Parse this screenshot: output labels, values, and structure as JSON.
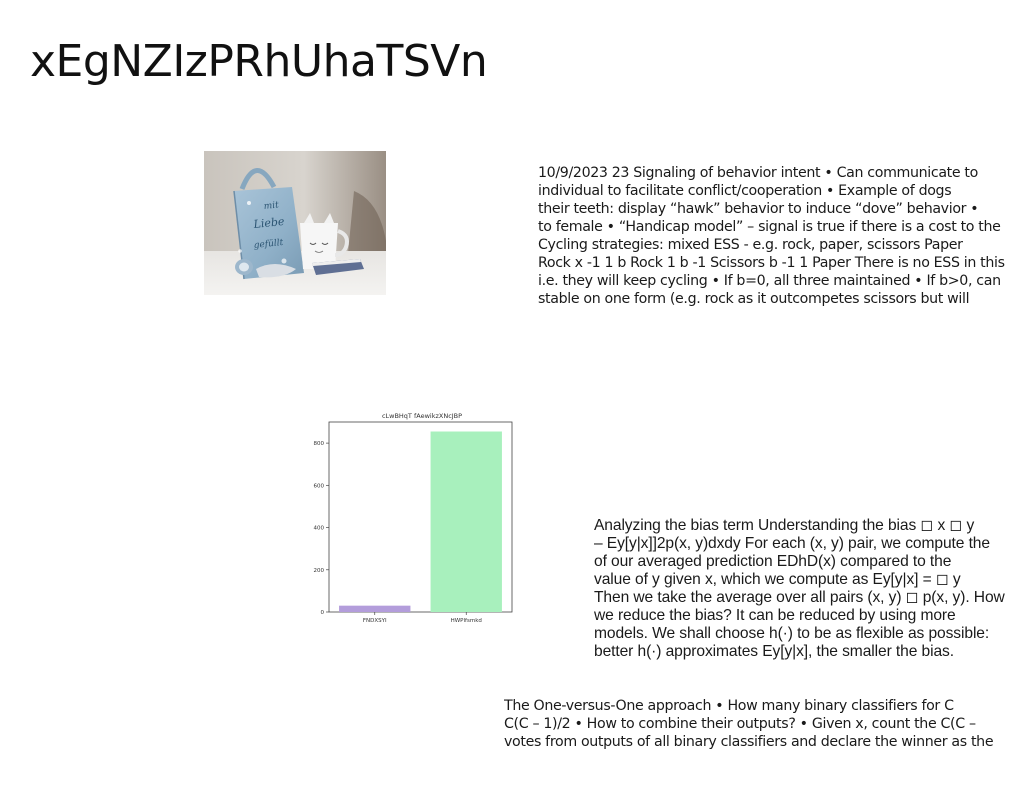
{
  "page": {
    "title": "xEgNZIzPRhUhaTSVn"
  },
  "photo": {
    "bag_text": [
      "mit",
      "Liebe",
      "gefüllt"
    ]
  },
  "text_blocks": [
    {
      "lines": [
        "10/9/2023 23 Signaling of behavior intent • Can communicate to",
        "individual to facilitate conflict/cooperation • Example of dogs",
        "their teeth: display “hawk” behavior to induce “dove” behavior •",
        "to female • “Handicap model” – signal is true if there is a cost to the",
        "Cycling strategies: mixed ESS - e.g. rock, paper, scissors Paper",
        "Rock x -1 1 b Rock 1 b -1 Scissors b -1 1 Paper There is no ESS in this",
        "i.e. they will keep cycling • If b=0, all three maintained • If b>0, can",
        "stable on one form (e.g. rock as it outcompetes scissors but will"
      ]
    },
    {
      "lines": [
        "Analyzing the bias term Understanding the bias ◻ x ◻ y",
        "– Ey[y|x]]2p(x, y)dxdy For each (x, y) pair, we compute the",
        "of our averaged prediction EDhD(x) compared to the",
        "value of y given x, which we compute as Ey[y|x] = ◻ y",
        "Then we take the average over all pairs (x, y) ◻ p(x, y). How",
        "we reduce the bias? It can be reduced by using more",
        "models. We shall choose h(·) to be as flexible as possible:",
        "better h(·) approximates Ey[y|x], the smaller the bias."
      ]
    },
    {
      "lines": [
        "The One-versus-One approach • How many binary classifiers for C",
        "C(C – 1)/2 • How to combine their outputs? • Given x, count the C(C –",
        "votes from outputs of all binary classifiers and declare the winner as the"
      ]
    }
  ],
  "chart_data": {
    "type": "bar",
    "title": "cLwBHqT fAewikzXNcJBP",
    "categories": [
      "FNDXSYI",
      "HWPlfsmkd"
    ],
    "values": [
      30,
      855
    ],
    "colors": [
      "#b39ddb",
      "#a8f0bd"
    ],
    "ylim": [
      0,
      900
    ],
    "yticks": [
      0,
      200,
      400,
      600,
      800
    ],
    "xlabel": "",
    "ylabel": "",
    "grid": false
  }
}
